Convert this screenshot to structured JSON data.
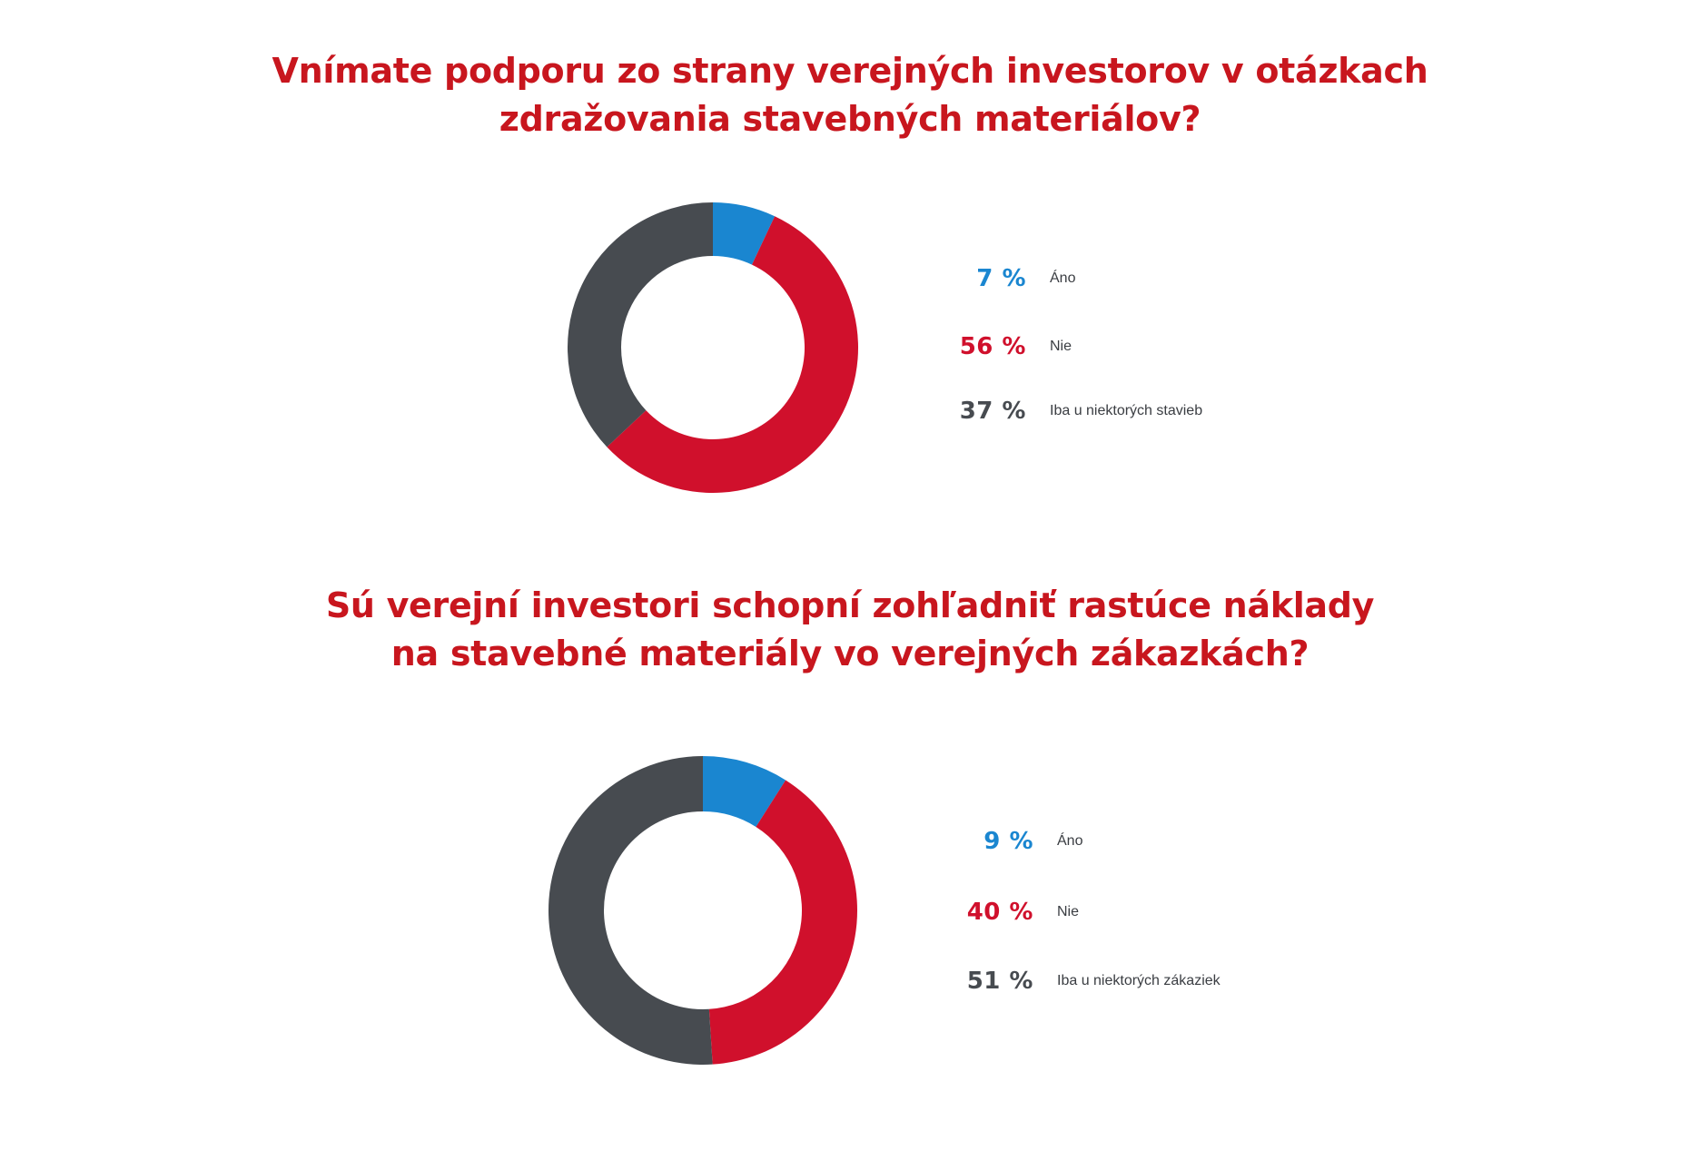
{
  "chart_data": [
    {
      "type": "pie",
      "title_lines": [
        "Vnímate podporu zo strany verejných investorov v otázkach",
        "zdražovania stavebných materiálov?"
      ],
      "categories": [
        "Áno",
        "Nie",
        "Iba u niektorých stavieb"
      ],
      "values": [
        7,
        56,
        37
      ],
      "value_labels": [
        "7 %",
        "56 %",
        "37 %"
      ],
      "colors": [
        "#1a86d0",
        "#d0102c",
        "#474b50"
      ],
      "unit": "%",
      "legend_position": "right"
    },
    {
      "type": "pie",
      "title_lines": [
        "Sú verejní investori schopní zohľadniť rastúce náklady",
        "na stavebné materiály vo verejných zákazkách?"
      ],
      "categories": [
        "Áno",
        "Nie",
        "Iba u niektorých zákaziek"
      ],
      "values": [
        9,
        40,
        51
      ],
      "value_labels": [
        "9 %",
        "40 %",
        "51 %"
      ],
      "colors": [
        "#1a86d0",
        "#d0102c",
        "#474b50"
      ],
      "unit": "%",
      "legend_position": "right"
    }
  ]
}
